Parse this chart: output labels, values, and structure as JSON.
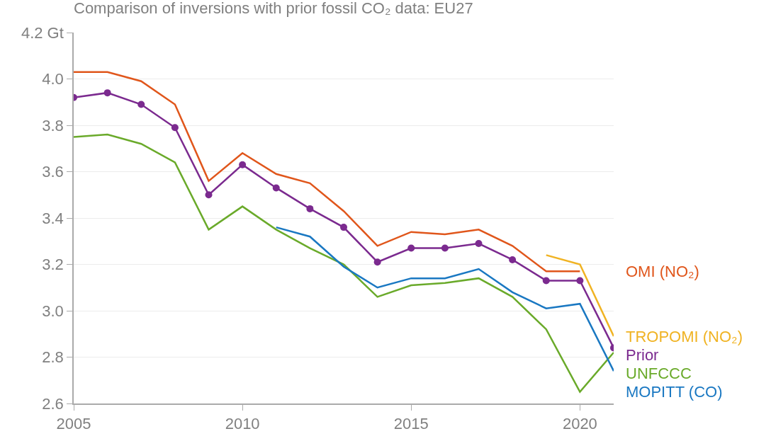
{
  "chart_data": {
    "type": "line",
    "title": "Comparison of inversions with prior fossil CO₂ data: EU27",
    "xlim": [
      2005,
      2021
    ],
    "xticks": [
      2005,
      2010,
      2015,
      2020
    ],
    "ylim": [
      2.6,
      4.2
    ],
    "yticks": [
      2.6,
      2.8,
      {
        "value": 3,
        "label": "3.0"
      },
      3.2,
      3.4,
      3.6,
      3.8,
      {
        "value": 4,
        "label": "4.0"
      },
      {
        "value": 4.2,
        "label": "4.2 Gt"
      }
    ],
    "grid": "y",
    "legend": false,
    "marker": "none",
    "line_style": "solid",
    "series": [
      {
        "name": "OMI (NO₂)",
        "color": "#e0561b",
        "x": [
          2005,
          2006,
          2007,
          2008,
          2009,
          2010,
          2011,
          2012,
          2013,
          2014,
          2015,
          2016,
          2017,
          2018,
          2019,
          2020
        ],
        "values": [
          4.03,
          4.03,
          3.99,
          3.89,
          3.56,
          3.68,
          3.59,
          3.55,
          3.43,
          3.28,
          3.34,
          3.33,
          3.35,
          3.28,
          3.17,
          3.17
        ]
      },
      {
        "name": "TROPOMI (NO₂)",
        "color": "#f0b323",
        "x": [
          2019,
          2020,
          2021
        ],
        "values": [
          3.24,
          3.2,
          2.89
        ]
      },
      {
        "name": "Prior",
        "color": "#7b2a8f",
        "marker": "circle",
        "x": [
          2005,
          2006,
          2007,
          2008,
          2009,
          2010,
          2011,
          2012,
          2013,
          2014,
          2015,
          2016,
          2017,
          2018,
          2019,
          2020,
          2021
        ],
        "values": [
          3.92,
          3.94,
          3.89,
          3.79,
          3.5,
          3.63,
          3.53,
          3.44,
          3.36,
          3.21,
          3.27,
          3.27,
          3.29,
          3.22,
          3.13,
          3.13,
          2.84
        ]
      },
      {
        "name": "UNFCCC",
        "color": "#6aaa2a",
        "x": [
          2005,
          2006,
          2007,
          2008,
          2009,
          2010,
          2011,
          2012,
          2013,
          2014,
          2015,
          2016,
          2017,
          2018,
          2019,
          2020,
          2021
        ],
        "values": [
          3.75,
          3.76,
          3.72,
          3.64,
          3.35,
          3.45,
          3.35,
          3.27,
          3.2,
          3.06,
          3.11,
          3.12,
          3.14,
          3.06,
          2.92,
          2.65,
          2.82
        ]
      },
      {
        "name": "MOPITT (CO)",
        "color": "#1a78c2",
        "x": [
          2011,
          2012,
          2013,
          2014,
          2015,
          2016,
          2017,
          2018,
          2019,
          2020,
          2021
        ],
        "values": [
          3.36,
          3.32,
          3.19,
          3.1,
          3.14,
          3.14,
          3.18,
          3.08,
          3.01,
          3.03,
          2.74
        ]
      }
    ]
  }
}
